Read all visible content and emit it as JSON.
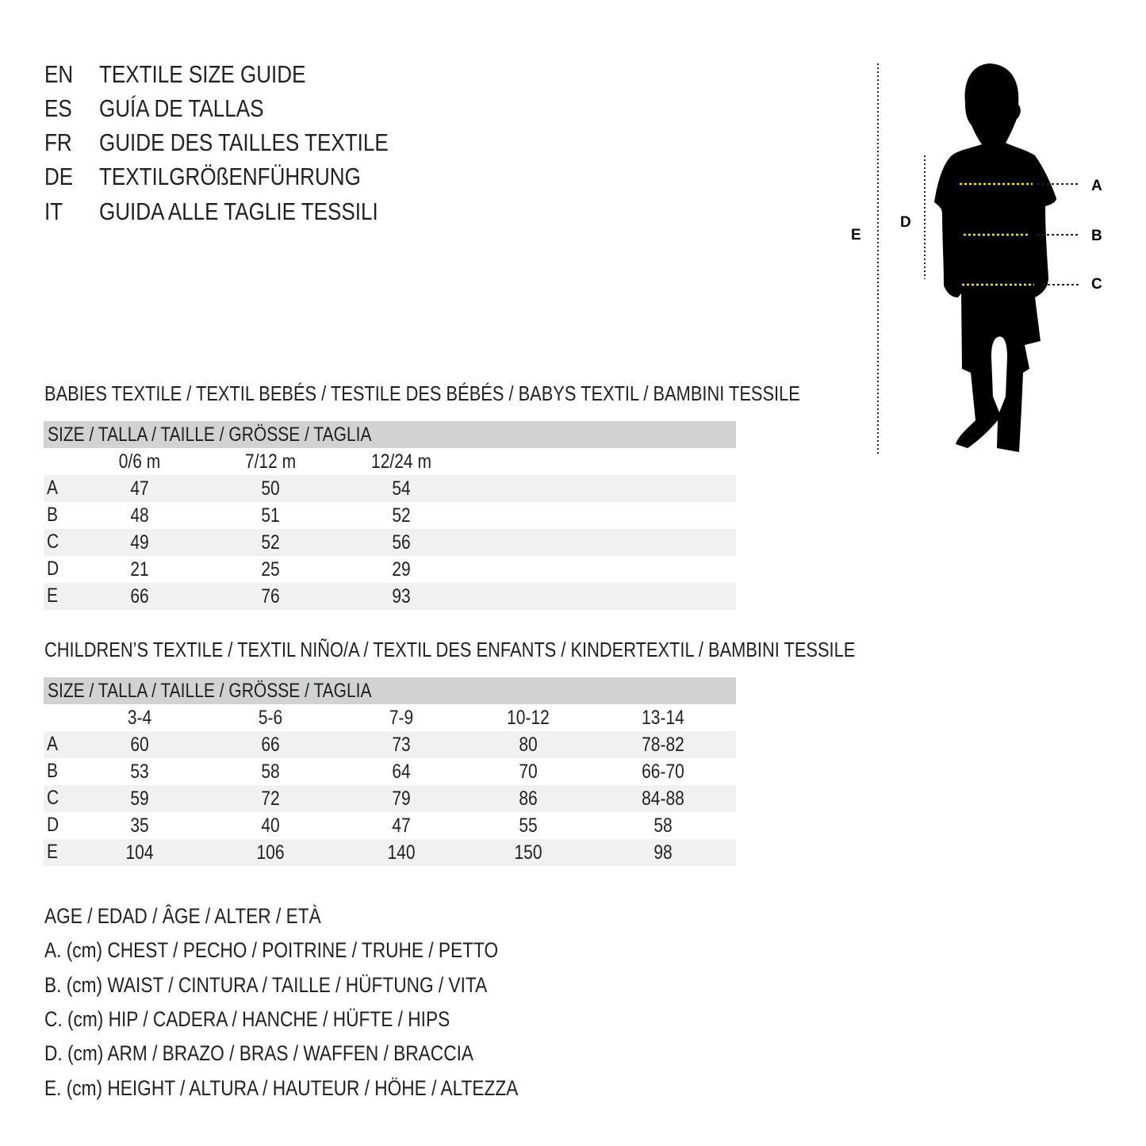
{
  "titles": [
    {
      "code": "EN",
      "text": "TEXTILE SIZE GUIDE"
    },
    {
      "code": "ES",
      "text": "GUÍA DE TALLAS"
    },
    {
      "code": "FR",
      "text": "GUIDE DES TAILLES TEXTILE"
    },
    {
      "code": "DE",
      "text": "TEXTILGRÖßENFÜHRUNG"
    },
    {
      "code": "IT",
      "text": "GUIDA ALLE TAGLIE TESSILI"
    }
  ],
  "figure": {
    "labels": {
      "A": "A",
      "B": "B",
      "C": "C",
      "D": "D",
      "E": "E"
    },
    "accent": "#f2e62f"
  },
  "babies": {
    "title": "BABIES TEXTILE / TEXTIL BEBÉS / TESTILE DES BÉBÉS / BABYS TEXTIL / BAMBINI TESSILE",
    "size_header": "SIZE / TALLA / TAILLE / GRÖSSE / TAGLIA",
    "columns": [
      "0/6 m",
      "7/12 m",
      "12/24 m"
    ],
    "rows": [
      {
        "label": "A",
        "values": [
          "47",
          "50",
          "54"
        ]
      },
      {
        "label": "B",
        "values": [
          "48",
          "51",
          "52"
        ]
      },
      {
        "label": "C",
        "values": [
          "49",
          "52",
          "56"
        ]
      },
      {
        "label": "D",
        "values": [
          "21",
          "25",
          "29"
        ]
      },
      {
        "label": "E",
        "values": [
          "66",
          "76",
          "93"
        ]
      }
    ]
  },
  "children": {
    "title": "CHILDREN’S TEXTILE / TEXTIL NIÑO/A / TEXTIL DES ENFANTS / KINDERTEXTIL / BAMBINI TESSILE",
    "size_header": "SIZE / TALLA / TAILLE / GRÖSSE / TAGLIA",
    "columns": [
      "3-4",
      "5-6",
      "7-9",
      "10-12",
      "13-14"
    ],
    "rows": [
      {
        "label": "A",
        "values": [
          "60",
          "66",
          "73",
          "80",
          "78-82"
        ]
      },
      {
        "label": "B",
        "values": [
          "53",
          "58",
          "64",
          "70",
          "66-70"
        ]
      },
      {
        "label": "C",
        "values": [
          "59",
          "72",
          "79",
          "86",
          "84-88"
        ]
      },
      {
        "label": "D",
        "values": [
          "35",
          "40",
          "47",
          "55",
          "58"
        ]
      },
      {
        "label": "E",
        "values": [
          "104",
          "106",
          "140",
          "150",
          "98"
        ]
      }
    ]
  },
  "legend": [
    "AGE / EDAD / ÂGE / ALTER / ETÀ",
    "A. (cm) CHEST / PECHO / POITRINE / TRUHE / PETTO",
    "B. (cm) WAIST / CINTURA / TAILLE / HÜFTUNG / VITA",
    "C. (cm) HIP / CADERA / HANCHE / HÜFTE / HIPS",
    "D. (cm) ARM / BRAZO / BRAS / WAFFEN / BRACCIA",
    "E. (cm) HEIGHT / ALTURA / HAUTEUR / HÖHE / ALTEZZA"
  ]
}
